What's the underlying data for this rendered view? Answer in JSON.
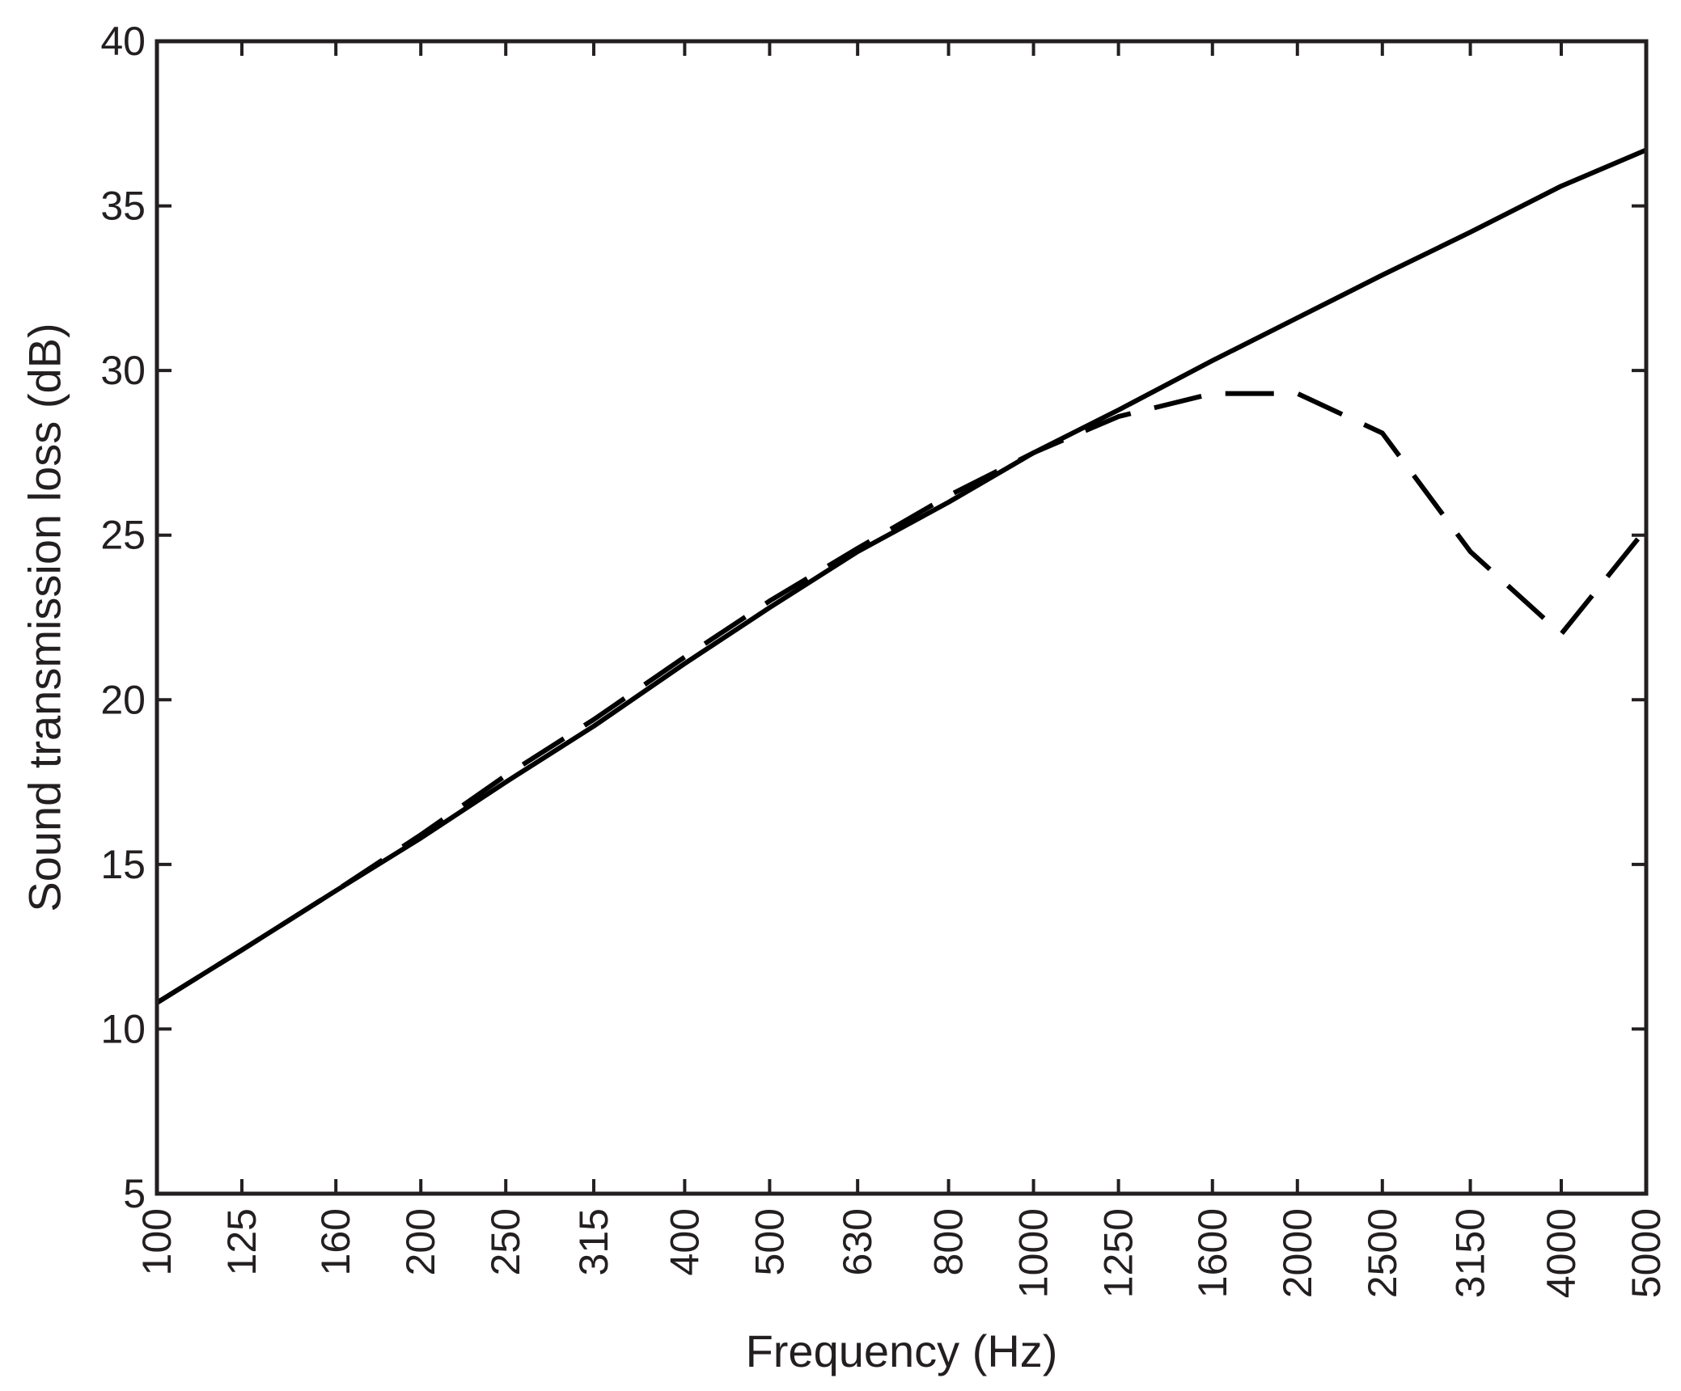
{
  "chart_data": {
    "type": "line",
    "title": "",
    "xlabel": "Frequency (Hz)",
    "ylabel": "Sound transmission loss (dB)",
    "x_scale": "log",
    "xlim": [
      100,
      5000
    ],
    "ylim": [
      5,
      40
    ],
    "x_ticks": [
      "100",
      "125",
      "160",
      "200",
      "250",
      "315",
      "400",
      "500",
      "630",
      "800",
      "1000",
      "1250",
      "1600",
      "2000",
      "2500",
      "3150",
      "4000",
      "5000"
    ],
    "y_ticks": [
      "5",
      "10",
      "15",
      "20",
      "25",
      "30",
      "35",
      "40"
    ],
    "grid": false,
    "legend": "none",
    "series": [
      {
        "style": "solid",
        "color": "#000000",
        "x": [
          100,
          125,
          160,
          200,
          250,
          315,
          400,
          500,
          630,
          800,
          1000,
          1250,
          1600,
          2000,
          2500,
          3150,
          4000,
          5000
        ],
        "y": [
          10.8,
          12.4,
          14.2,
          15.8,
          17.5,
          19.2,
          21.1,
          22.8,
          24.5,
          26.0,
          27.5,
          28.8,
          30.3,
          31.6,
          32.9,
          34.2,
          35.6,
          36.7
        ]
      },
      {
        "style": "dashed",
        "color": "#000000",
        "x": [
          100,
          125,
          160,
          200,
          250,
          315,
          400,
          500,
          630,
          800,
          1000,
          1250,
          1600,
          2000,
          2500,
          3150,
          4000,
          5000
        ],
        "y": [
          10.8,
          12.4,
          14.2,
          15.9,
          17.7,
          19.4,
          21.3,
          23.0,
          24.6,
          26.2,
          27.5,
          28.6,
          29.3,
          29.3,
          28.1,
          24.5,
          22.0,
          25.2
        ]
      }
    ]
  }
}
